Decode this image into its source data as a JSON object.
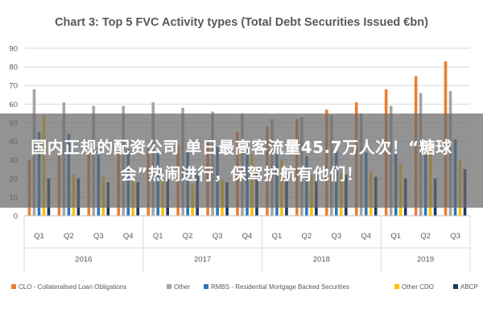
{
  "chart_data": {
    "type": "bar",
    "title": "Chart 3: Top 5 FVC Activity types (Total Debt Securities Issued €bn)",
    "ylim": [
      0,
      90
    ],
    "yticks": [
      0,
      10,
      20,
      30,
      40,
      50,
      60,
      70,
      80,
      90
    ],
    "grid": true,
    "legend_position": "bottom",
    "categories": [
      "Q1",
      "Q2",
      "Q3",
      "Q4",
      "Q1",
      "Q2",
      "Q3",
      "Q4",
      "Q1",
      "Q2",
      "Q3",
      "Q4",
      "Q1",
      "Q2",
      "Q3"
    ],
    "years": [
      {
        "label": "2016",
        "span": 4
      },
      {
        "label": "2017",
        "span": 4
      },
      {
        "label": "2018",
        "span": 4
      },
      {
        "label": "2019",
        "span": 3
      }
    ],
    "series": [
      {
        "name": "CLO - Collateralised Loan Obligations",
        "color": "#ed7d31",
        "values": [
          30,
          32,
          33,
          35,
          36,
          38,
          41,
          45,
          48,
          52,
          57,
          61,
          68,
          75,
          83
        ]
      },
      {
        "name": "Other",
        "color": "#a5a5a5",
        "values": [
          68,
          61,
          59,
          59,
          61,
          58,
          56,
          55,
          52,
          53,
          54,
          55,
          59,
          66,
          67
        ]
      },
      {
        "name": "RMBS - Residential Mortgage Backed Securities",
        "color": "#2e75b6",
        "values": [
          45,
          44,
          37,
          36,
          34,
          34,
          37,
          38,
          33,
          32,
          35,
          34,
          33,
          33,
          41
        ]
      },
      {
        "name": "Other CDO",
        "color": "#ffc000",
        "values": [
          54,
          22,
          21,
          20,
          19,
          17,
          19,
          33,
          30,
          22,
          23,
          24,
          28,
          36,
          30
        ]
      },
      {
        "name": "ABCP",
        "color": "#1f3864",
        "values": [
          20,
          20,
          18,
          18,
          20,
          23,
          18,
          24,
          22,
          23,
          22,
          21,
          20,
          20,
          25
        ]
      }
    ]
  },
  "banner": {
    "text": "国内正规的配资公司 单日最高客流量45.7万人次！“糖球会”热闹进行，保驾护航有他们！"
  }
}
